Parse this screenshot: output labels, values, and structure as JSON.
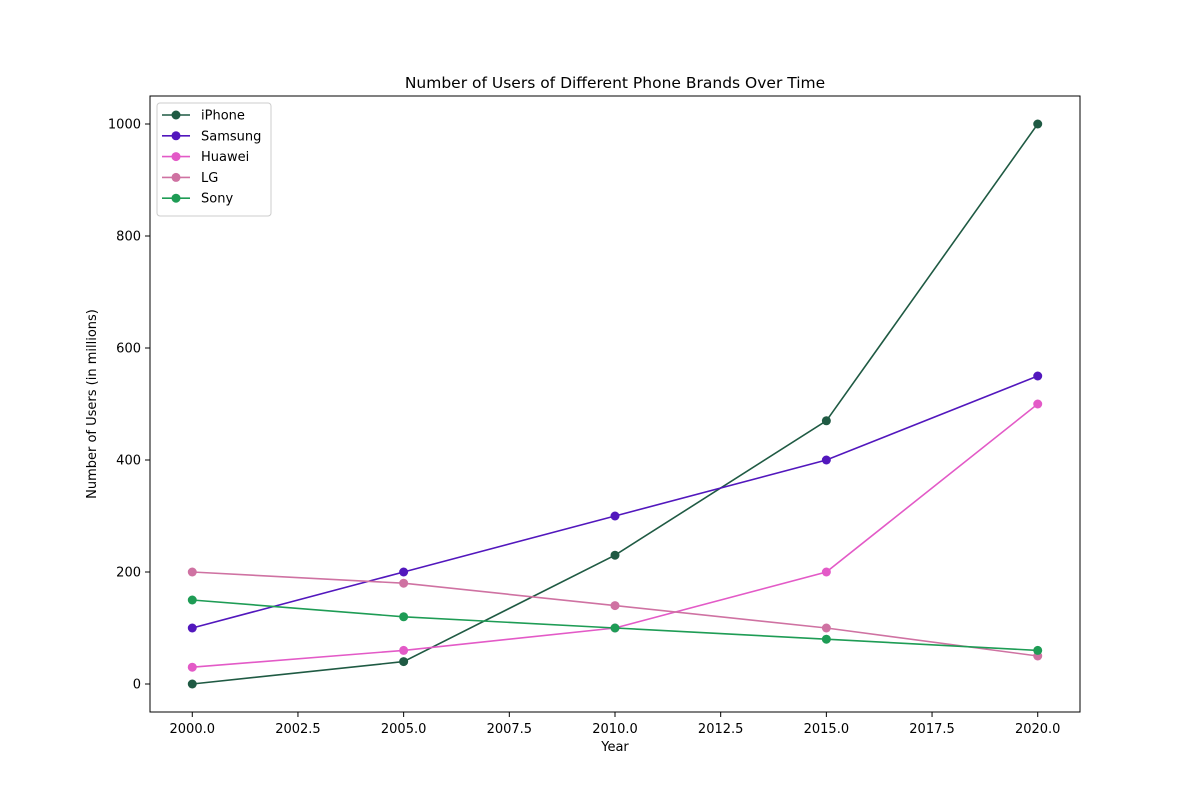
{
  "chart_data": {
    "type": "line",
    "title": "Number of Users of Different Phone Brands Over Time",
    "xlabel": "Year",
    "ylabel": "Number of Users (in millions)",
    "x": [
      2000,
      2005,
      2010,
      2015,
      2020
    ],
    "xlim": [
      1999,
      2021
    ],
    "ylim": [
      -50,
      1050
    ],
    "xticks": [
      2000,
      2002.5,
      2005,
      2007.5,
      2010,
      2012.5,
      2015,
      2017.5,
      2020
    ],
    "xtick_labels": [
      "2000.0",
      "2002.5",
      "2005.0",
      "2007.5",
      "2010.0",
      "2012.5",
      "2015.0",
      "2017.5",
      "2020.0"
    ],
    "yticks": [
      0,
      200,
      400,
      600,
      800,
      1000
    ],
    "ytick_labels": [
      "0",
      "200",
      "400",
      "600",
      "800",
      "1000"
    ],
    "grid": false,
    "legend_position": "upper-left",
    "series": [
      {
        "name": "iPhone",
        "color": "#1f5a43",
        "values": [
          0,
          40,
          230,
          470,
          1000
        ]
      },
      {
        "name": "Samsung",
        "color": "#5217bd",
        "values": [
          100,
          200,
          300,
          400,
          550
        ]
      },
      {
        "name": "Huawei",
        "color": "#e35ac7",
        "values": [
          30,
          60,
          100,
          200,
          500
        ]
      },
      {
        "name": "LG",
        "color": "#cf72a2",
        "values": [
          200,
          180,
          140,
          100,
          50
        ]
      },
      {
        "name": "Sony",
        "color": "#1e9c55",
        "values": [
          150,
          120,
          100,
          80,
          60
        ]
      }
    ]
  }
}
